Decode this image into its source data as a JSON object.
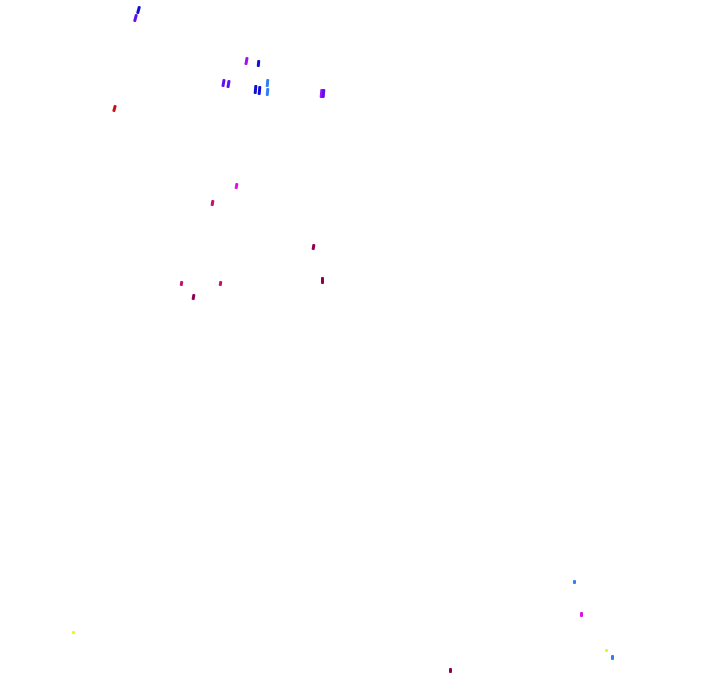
{
  "canvas": {
    "background": "#ffffff"
  },
  "palette": {
    "blue": "#1010d0",
    "violet": "#6010f0",
    "purple": "#a010f0",
    "light_blue": "#3080f0",
    "red": "#d01010",
    "magenta": "#e010e0",
    "crimson": "#c01070",
    "maroon": "#900050",
    "yellow": "#f0f020"
  }
}
